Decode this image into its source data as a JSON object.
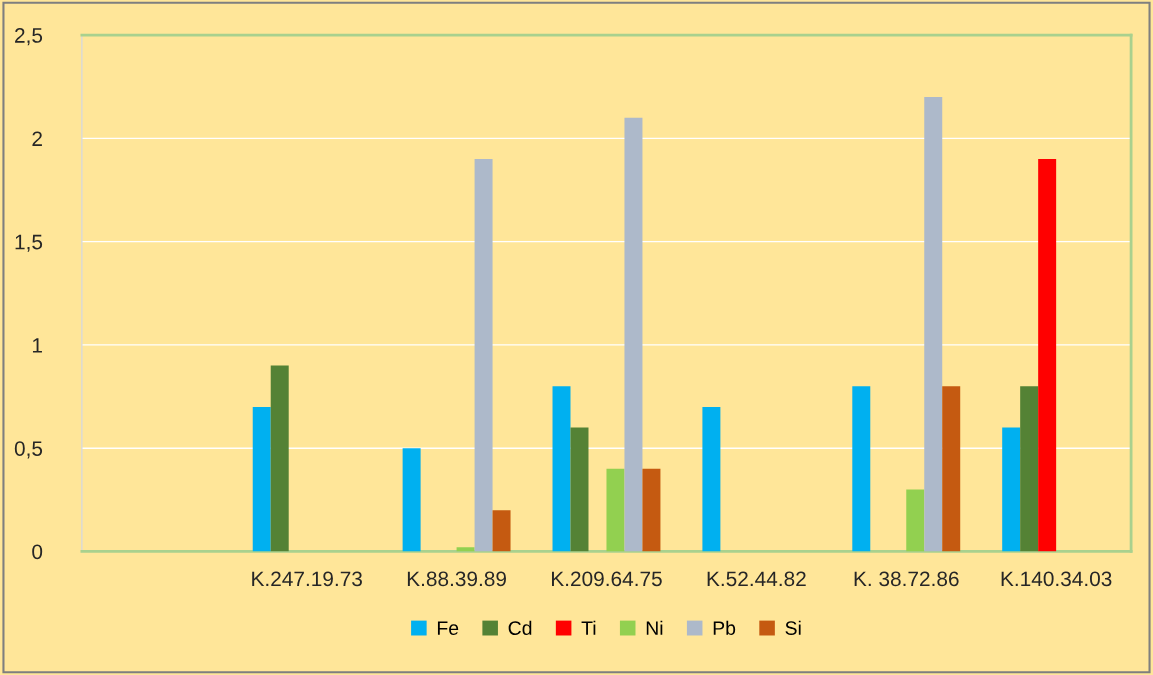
{
  "chart_data": {
    "type": "bar",
    "categories": [
      null,
      "K.247.19.73",
      "K.88.39.89",
      "K.209.64.75",
      "K.52.44.82",
      "K. 38.72.86",
      "K.140.34.03"
    ],
    "series": [
      {
        "name": "Fe",
        "color": "#00b0f0",
        "values": [
          null,
          0.7,
          0.5,
          0.8,
          0.7,
          0.8,
          0.6
        ]
      },
      {
        "name": "Cd",
        "color": "#548235",
        "values": [
          null,
          0.9,
          null,
          0.6,
          null,
          null,
          0.8
        ]
      },
      {
        "name": "Ti",
        "color": "#ff0000",
        "values": [
          null,
          null,
          null,
          null,
          null,
          null,
          1.9
        ]
      },
      {
        "name": "Ni",
        "color": "#92d050",
        "values": [
          null,
          null,
          0.02,
          0.4,
          null,
          0.3,
          null
        ]
      },
      {
        "name": "Pb",
        "color": "#adb9ca",
        "values": [
          null,
          null,
          1.9,
          2.1,
          null,
          2.2,
          null
        ]
      },
      {
        "name": "Si",
        "color": "#c55a11",
        "values": [
          null,
          null,
          0.2,
          0.4,
          null,
          0.8,
          null
        ]
      }
    ],
    "ylim": [
      0,
      2.5
    ],
    "yticks": [
      0,
      {
        "value": 0.5,
        "label": "0,5"
      },
      1,
      {
        "value": 1.5,
        "label": "1,5"
      },
      2,
      {
        "value": 2.5,
        "label": "2,5"
      }
    ],
    "grid": "y",
    "legend": "bottom"
  }
}
